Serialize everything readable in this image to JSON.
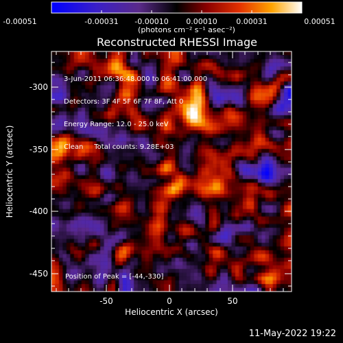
{
  "colorbar": {
    "ticks": [
      "-0.00051",
      "-0.00031",
      "-0.00010",
      "0.00010",
      "0.00031",
      "0.00051"
    ],
    "units": "(photons cm⁻² s⁻¹ asec⁻²)"
  },
  "plot": {
    "title": "Reconstructed RHESSI Image",
    "xlabel": "Heliocentric X (arcsec)",
    "ylabel": "Heliocentric Y (arcsec)",
    "xticks": [
      "-50",
      "0",
      "50"
    ],
    "yticks": [
      "-300",
      "-350",
      "-400",
      "-450"
    ],
    "info_lines": [
      "3-Jun-2011 06:36:48.000 to 06:41:00.000",
      "Detectors: 3F 4F 5F 6F 7F 8F, Att 0",
      "Energy Range: 12.0 - 25.0 keV",
      "Clean     Total counts: 9.28E+03"
    ],
    "peak": "Position of Peak = [-44,-330]"
  },
  "footer": {
    "timestamp": "11-May-2022 19:22"
  }
}
